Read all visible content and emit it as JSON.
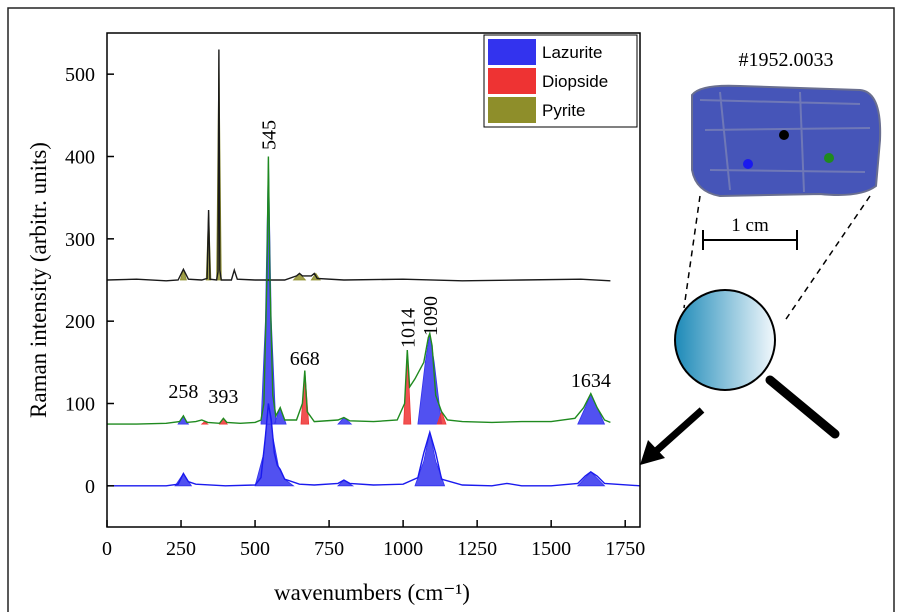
{
  "chart_data": {
    "type": "spectrum",
    "xlabel": "wavenumbers (cm⁻¹)",
    "ylabel": "Raman intensity (arbitr. units)",
    "xlim": [
      0,
      1800
    ],
    "ylim": [
      -50,
      550
    ],
    "xticks": [
      0,
      250,
      500,
      750,
      1000,
      1250,
      1500,
      1750
    ],
    "yticks": [
      0,
      100,
      200,
      300,
      400,
      500
    ],
    "legend": "upper right",
    "peak_labels": [
      258,
      393,
      545,
      668,
      1014,
      1090,
      1634
    ],
    "series": [
      {
        "name": "Lazurite",
        "color": "#3333ee",
        "x": [
          230,
          258,
          285,
          null,
          500,
          530,
          545,
          560,
          580,
          600,
          630,
          null,
          780,
          800,
          830,
          null,
          1040,
          1070,
          1090,
          1110,
          1140,
          null,
          1590,
          1634,
          1680,
          null,
          240,
          258,
          275,
          null,
          520,
          535,
          545,
          555,
          570,
          null,
          565,
          585,
          605,
          null,
          780,
          800,
          825,
          null,
          1050,
          1075,
          1090,
          1105,
          1130,
          null,
          1590,
          1615,
          1634,
          1655,
          1680
        ],
        "values": [
          0,
          15,
          0,
          null,
          0,
          40,
          100,
          60,
          22,
          8,
          0,
          null,
          0,
          7,
          0,
          null,
          0,
          30,
          65,
          30,
          0,
          null,
          0,
          17,
          0,
          null,
          75,
          85,
          75,
          null,
          75,
          200,
          400,
          200,
          75,
          null,
          75,
          95,
          75,
          null,
          75,
          83,
          75,
          null,
          75,
          150,
          185,
          150,
          75,
          null,
          75,
          95,
          112,
          95,
          75
        ]
      },
      {
        "name": "Diopside",
        "color": "#ee3333",
        "x": [
          320,
          330,
          340,
          null,
          380,
          393,
          406,
          null,
          655,
          668,
          681,
          null,
          1002,
          1014,
          1026,
          null,
          1115,
          1130,
          1145
        ],
        "values": [
          75,
          78,
          75,
          null,
          75,
          82,
          75,
          null,
          75,
          140,
          75,
          null,
          75,
          165,
          75,
          null,
          75,
          90,
          75
        ]
      },
      {
        "name": "Pyrite",
        "color": "#8e8e2a",
        "x": [
          248,
          258,
          268,
          null,
          335,
          343,
          351,
          null,
          370,
          378,
          386,
          null,
          630,
          650,
          670,
          null,
          690,
          705,
          720
        ],
        "values": [
          250,
          263,
          250,
          null,
          250,
          335,
          250,
          null,
          250,
          530,
          250,
          null,
          250,
          258,
          250,
          null,
          250,
          258,
          250
        ]
      }
    ],
    "lines": [
      {
        "color": "#1a1a1a",
        "x": [
          0,
          100,
          200,
          240,
          258,
          275,
          320,
          338,
          343,
          348,
          370,
          375,
          378,
          381,
          386,
          420,
          430,
          440,
          500,
          600,
          640,
          650,
          660,
          690,
          700,
          710,
          800,
          1000,
          1200,
          1400,
          1600,
          1700
        ],
        "values": [
          250,
          251,
          249,
          250,
          263,
          251,
          250,
          252,
          335,
          251,
          250,
          260,
          530,
          262,
          250,
          250,
          262,
          251,
          250,
          250,
          255,
          258,
          255,
          255,
          258,
          252,
          250,
          251,
          249,
          250,
          251,
          249
        ]
      },
      {
        "color": "#1f8a1f",
        "x": [
          0,
          100,
          200,
          245,
          258,
          270,
          300,
          320,
          340,
          380,
          393,
          405,
          450,
          500,
          520,
          530,
          540,
          545,
          550,
          560,
          570,
          585,
          600,
          640,
          660,
          668,
          676,
          700,
          780,
          800,
          820,
          900,
          980,
          1005,
          1014,
          1022,
          1040,
          1070,
          1085,
          1090,
          1098,
          1110,
          1130,
          1150,
          1200,
          1300,
          1400,
          1500,
          1580,
          1610,
          1634,
          1655,
          1680,
          1700
        ],
        "values": [
          75,
          75,
          76,
          78,
          85,
          77,
          78,
          80,
          77,
          76,
          82,
          77,
          76,
          77,
          80,
          100,
          250,
          400,
          250,
          110,
          85,
          95,
          80,
          80,
          100,
          140,
          90,
          78,
          80,
          83,
          79,
          78,
          80,
          100,
          165,
          120,
          130,
          150,
          180,
          185,
          170,
          110,
          90,
          80,
          78,
          77,
          78,
          78,
          82,
          95,
          112,
          95,
          80,
          77
        ]
      },
      {
        "color": "#1a1aee",
        "x": [
          0,
          200,
          240,
          258,
          275,
          300,
          400,
          500,
          520,
          535,
          545,
          555,
          565,
          575,
          585,
          600,
          650,
          700,
          780,
          800,
          820,
          900,
          1000,
          1050,
          1070,
          1090,
          1110,
          1130,
          1200,
          1300,
          1350,
          1400,
          1500,
          1590,
          1615,
          1634,
          1655,
          1680,
          1800
        ],
        "values": [
          0,
          0,
          2,
          15,
          5,
          2,
          0,
          1,
          10,
          60,
          100,
          80,
          40,
          25,
          20,
          8,
          2,
          1,
          3,
          7,
          3,
          1,
          2,
          10,
          40,
          65,
          40,
          8,
          1,
          0,
          3,
          0,
          0,
          3,
          12,
          17,
          12,
          3,
          0
        ]
      }
    ],
    "inset": {
      "title": "#1952.0033",
      "scale_label": "1 cm"
    }
  }
}
